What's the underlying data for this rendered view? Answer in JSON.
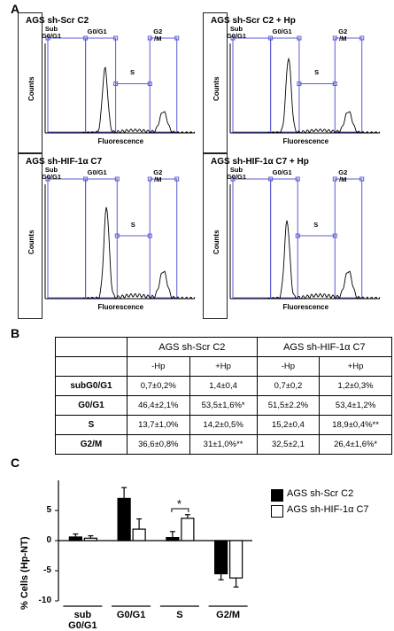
{
  "panels": {
    "a": "A",
    "b": "B",
    "c": "C"
  },
  "histograms": [
    {
      "title": "AGS sh-Scr C2",
      "xlabel": "Fluorescence",
      "ylabel": "Counts",
      "gates": {
        "sub": "Sub\nG0/G1",
        "g0": "G0/G1",
        "s": "S",
        "g2": "G2 /M"
      }
    },
    {
      "title": "AGS sh-Scr C2 + Hp",
      "xlabel": "Fluorescence",
      "ylabel": "Counts",
      "gates": {
        "sub": "Sub\nG0/G1",
        "g0": "G0/G1",
        "s": "S",
        "g2": "G2 /M"
      }
    },
    {
      "title": "AGS sh-HIF-1α C7",
      "xlabel": "Fluorescence",
      "ylabel": "Counts",
      "gates": {
        "sub": "Sub\nG0/G1",
        "g0": "G0/G1",
        "s": "S",
        "g2": "G2 /M"
      }
    },
    {
      "title": "AGS sh-HIF-1α C7 + Hp",
      "xlabel": "Fluorescence",
      "ylabel": "Counts",
      "gates": {
        "sub": "Sub\nG0/G1",
        "g0": "G0/G1",
        "s": "S",
        "g2": "G2 /M"
      }
    }
  ],
  "table": {
    "groups": [
      "AGS sh-Scr C2",
      "AGS sh-HIF-1α C7"
    ],
    "subheaders": [
      "-Hp",
      "+Hp",
      "-Hp",
      "+Hp"
    ],
    "rows": [
      {
        "label": "subG0/G1",
        "cells": [
          "0,7±0,2%",
          "1,4±0,4",
          "0,7±0,2",
          "1,2±0,3%"
        ]
      },
      {
        "label": "G0/G1",
        "cells": [
          "46,4±2,1%",
          "53,5±1,6%*",
          "51,5±2.2%",
          "53,4±1,2%"
        ]
      },
      {
        "label": "S",
        "cells": [
          "13,7±1,0%",
          "14,2±0,5%",
          "15,2±0,4",
          "18,9±0,4%**"
        ]
      },
      {
        "label": "G2/M",
        "cells": [
          "36,6±0,8%",
          "31±1,0%**",
          "32,5±2,1",
          "26,4±1,6%*"
        ]
      }
    ]
  },
  "chart_data": {
    "type": "bar",
    "ylabel": "% Cells (Hp-NT)",
    "ylim": [
      -10,
      10
    ],
    "yticks": [
      -10,
      -5,
      0,
      5
    ],
    "categories": [
      "sub\nG0/G1",
      "G0/G1",
      "S",
      "G2/M"
    ],
    "series": [
      {
        "name": "AGS sh-Scr C2",
        "color": "#000000",
        "values": [
          0.6,
          7.0,
          0.5,
          -5.5
        ],
        "errors": [
          0.5,
          1.8,
          1.0,
          1.0
        ]
      },
      {
        "name": "AGS sh-HIF-1α C7",
        "color": "#ffffff",
        "values": [
          0.4,
          1.9,
          3.7,
          -6.2
        ],
        "errors": [
          0.4,
          1.7,
          0.6,
          1.5
        ]
      }
    ],
    "annotation": "*",
    "legend": "right"
  }
}
